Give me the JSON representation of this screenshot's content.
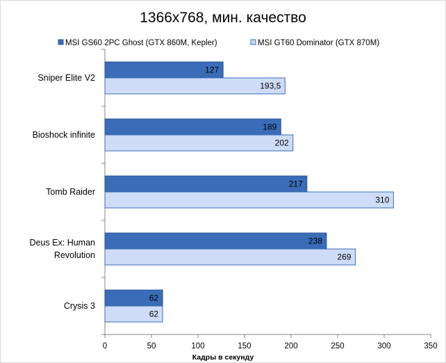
{
  "chart_data": {
    "type": "bar",
    "orientation": "horizontal",
    "title": "1366x768, мин. качество",
    "xlabel": "Кадры  в секунду",
    "ylabel": "",
    "categories": [
      [
        "Sniper Elite V2"
      ],
      [
        "Bioshock infinite"
      ],
      [
        "Tomb Raider"
      ],
      [
        "Deus Ex: Human",
        "Revolution"
      ],
      [
        "Crysis 3"
      ]
    ],
    "series": [
      {
        "name": "MSI GS60 2PC Ghost (GTX 860M, Kepler)",
        "values": [
          127,
          189,
          217,
          238,
          62
        ],
        "labels": [
          "127",
          "189",
          "217",
          "238",
          "62"
        ],
        "color": "#3a6cb7"
      },
      {
        "name": "MSI GT60 Dominator (GTX 870M)",
        "values": [
          193.5,
          202,
          310,
          269,
          62
        ],
        "labels": [
          "193,5",
          "202",
          "310",
          "269",
          "62"
        ],
        "color": "#cfdcf7"
      }
    ],
    "xlim": [
      0,
      350
    ],
    "xticks": [
      0,
      50,
      100,
      150,
      200,
      250,
      300,
      350
    ],
    "grid": false,
    "legend_position": "top"
  }
}
